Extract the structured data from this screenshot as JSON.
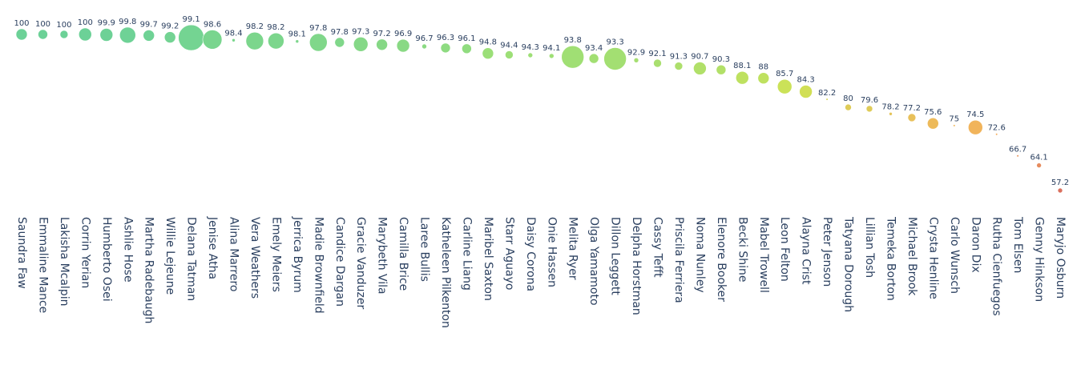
{
  "chart_data": {
    "type": "scatter",
    "subtype": "bubble",
    "xlabel": "",
    "ylabel": "",
    "ylim": [
      54,
      101
    ],
    "grid": false,
    "legend": "none",
    "colorscale": [
      "#d6604d",
      "#f4a54a",
      "#c9df43",
      "#8fdb6a",
      "#5ccc8c"
    ],
    "categories": [
      "Saundra Faw",
      "Emmaline Mance",
      "Lakisha Mcalpin",
      "Corrin Yerian",
      "Humberto Osei",
      "Ashlie Hose",
      "Martha Radebaugh",
      "Willie Lejeune",
      "Delana Tatman",
      "Jenise Atha",
      "Alina Marrero",
      "Vera Weathers",
      "Emely Meiers",
      "Jerrica Byrum",
      "Madie Brownfield",
      "Candice Dargan",
      "Gracie Vanduzer",
      "Marybeth Vila",
      "Camilla Brice",
      "Laree Bullis",
      "Katheleen Pilkenton",
      "Carline Liang",
      "Maribel Saxton",
      "Starr Aguayo",
      "Daisy Corona",
      "Onie Hassen",
      "Melita Ryer",
      "Olga Yamamoto",
      "Dillon Leggett",
      "Delpha Horstman",
      "Cassy Tefft",
      "Priscila Ferriera",
      "Noma Nunley",
      "Elenore Booker",
      "Becki Shine",
      "Mabel Trowell",
      "Leon Felton",
      "Alayna Crist",
      "Peter Jenson",
      "Tatyana Dorough",
      "Lillian Tosh",
      "Temeka Borton",
      "Michael Brook",
      "Crysta Henline",
      "Carlo Wunsch",
      "Daron Dix",
      "Rutha Cienfuegos",
      "Tom Elsen",
      "Genny Hinkson",
      "Maryjo Osburn"
    ],
    "values": [
      100,
      100,
      100,
      100,
      99.9,
      99.8,
      99.7,
      99.2,
      99.1,
      98.6,
      98.4,
      98.2,
      98.2,
      98.1,
      97.8,
      97.8,
      97.3,
      97.2,
      96.9,
      96.7,
      96.3,
      96.1,
      94.8,
      94.4,
      94.3,
      94.1,
      93.8,
      93.4,
      93.3,
      92.9,
      92.1,
      91.3,
      90.7,
      90.3,
      88.1,
      88,
      85.7,
      84.3,
      82.2,
      80,
      79.6,
      78.2,
      77.2,
      75.6,
      75,
      74.5,
      72.6,
      66.7,
      64.1,
      57.2
    ],
    "value_labels": [
      "100",
      "100",
      "100",
      "100",
      "99.9",
      "99.8",
      "99.7",
      "99.2",
      "99.1",
      "98.6",
      "98.4",
      "98.2",
      "98.2",
      "98.1",
      "97.8",
      "97.8",
      "97.3",
      "97.2",
      "96.9",
      "96.7",
      "96.3",
      "96.1",
      "94.8",
      "94.4",
      "94.3",
      "94.1",
      "93.8",
      "93.4",
      "93.3",
      "92.9",
      "92.1",
      "91.3",
      "90.7",
      "90.3",
      "88.1",
      "88",
      "85.7",
      "84.3",
      "82.2",
      "80",
      "79.6",
      "78.2",
      "77.2",
      "75.6",
      "75",
      "74.5",
      "72.6",
      "66.7",
      "64.1",
      "57.2"
    ],
    "sizes": [
      7,
      6,
      5,
      8,
      8,
      10,
      7,
      7,
      16,
      12,
      2,
      11,
      10,
      2,
      11,
      6,
      9,
      7,
      8,
      3,
      6,
      6,
      7,
      5,
      3,
      3,
      14,
      6,
      14,
      3,
      5,
      5,
      8,
      6,
      8,
      7,
      9,
      8,
      1,
      4,
      4,
      2,
      5,
      7,
      1,
      9,
      1,
      1,
      3,
      3
    ]
  }
}
